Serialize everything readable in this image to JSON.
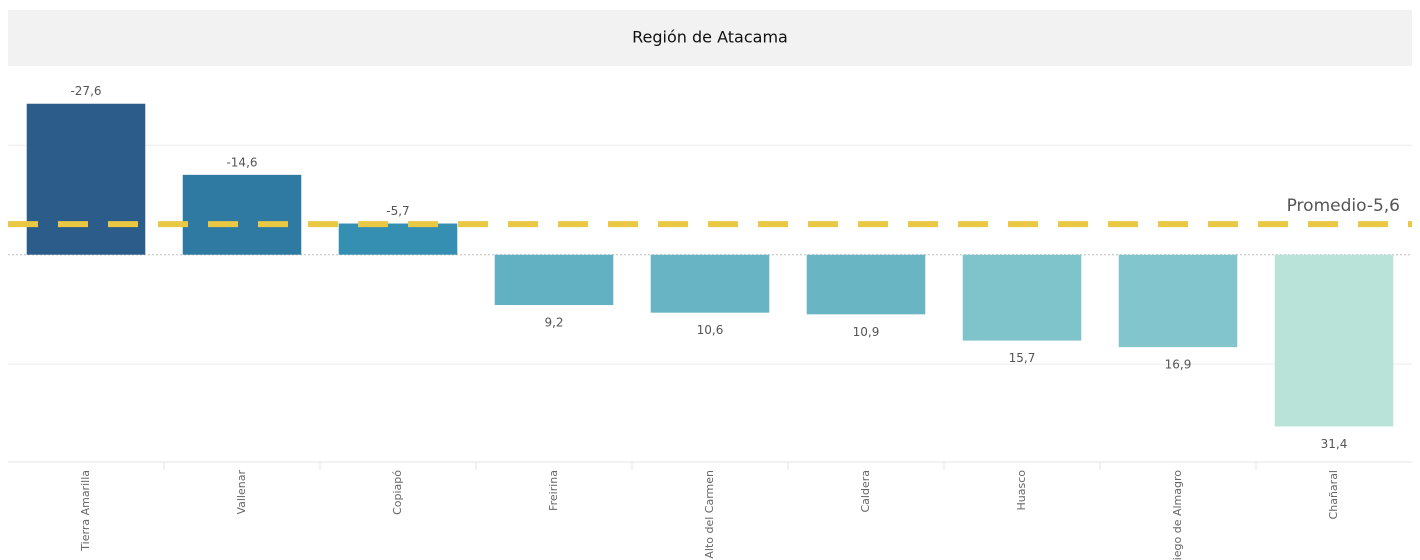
{
  "chart_data": {
    "type": "bar",
    "title": "Región de Atacama",
    "categories": [
      "Tierra Amarilla",
      "Vallenar",
      "Copiapó",
      "Freirina",
      "Alto del Carmen",
      "Caldera",
      "Huasco",
      "Diego de Almagro",
      "Chañaral"
    ],
    "values": [
      -27.6,
      -14.6,
      -5.7,
      9.2,
      10.6,
      10.9,
      15.7,
      16.9,
      31.4
    ],
    "value_labels": [
      "-27,6",
      "-14,6",
      "-5,7",
      "9,2",
      "10,6",
      "10,9",
      "15,7",
      "16,9",
      "31,4"
    ],
    "colors": [
      "#2b5c8a",
      "#2f7aa3",
      "#358fb3",
      "#62b1c2",
      "#68b4c4",
      "#6ab5c4",
      "#7fc3cb",
      "#83c5cd",
      "#b9e3d8"
    ],
    "ylim": [
      -34.5,
      37.9
    ],
    "yticks": [
      -20,
      0,
      20
    ],
    "grid": true,
    "y_inverted": true,
    "reference_line": {
      "value": -5.6,
      "label": "Promedio-5,6",
      "color": "#eac843"
    }
  }
}
